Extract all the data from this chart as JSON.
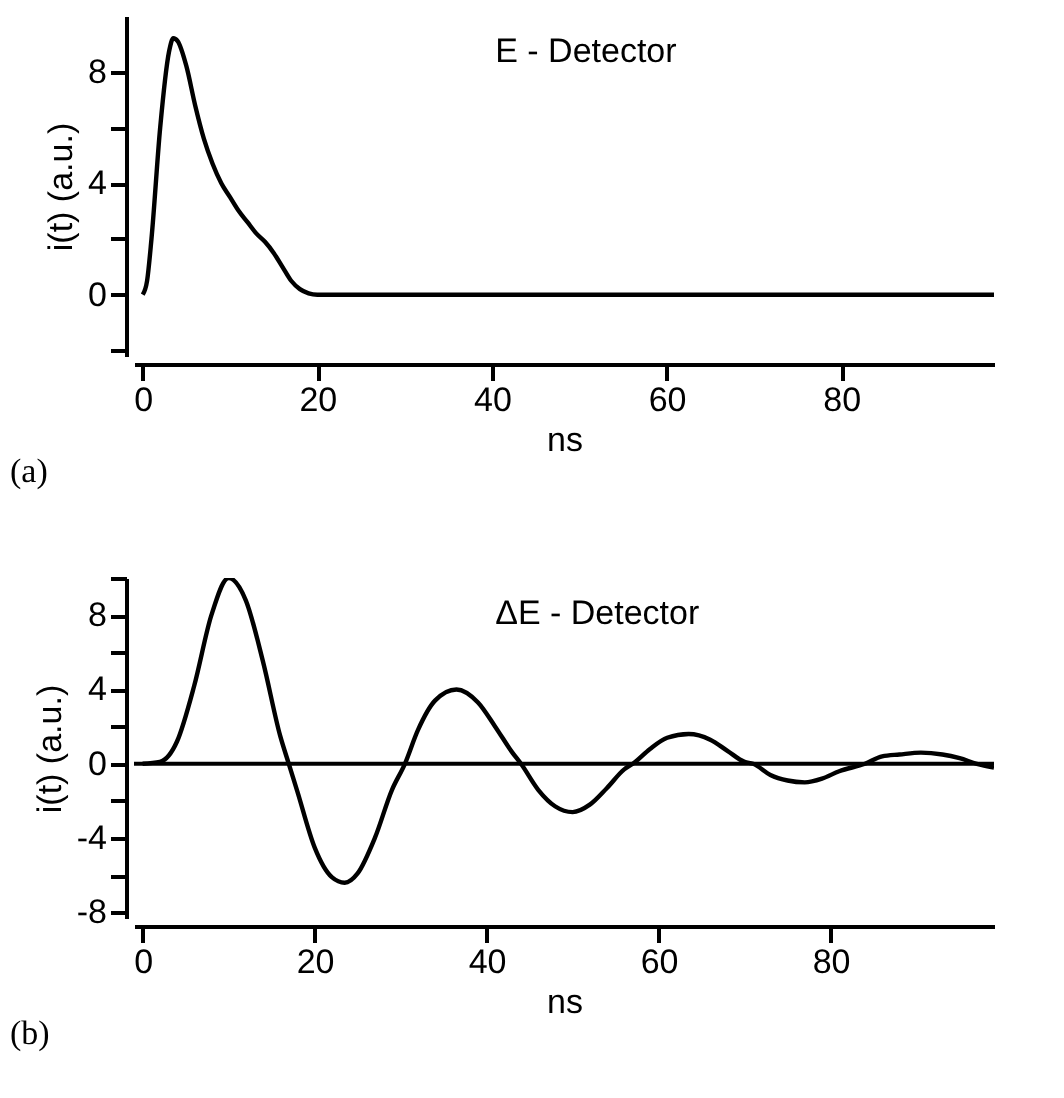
{
  "chart_data": [
    {
      "type": "line",
      "xlabel": "ns",
      "ylabel": "i(t) (a.u.)",
      "annotations": [
        "E - Detector",
        "(a)"
      ],
      "xlim": [
        -1,
        97.5
      ],
      "ylim": [
        -2.2,
        10
      ],
      "xticks": [
        0,
        20,
        40,
        60,
        80
      ],
      "yticks": [
        {
          "value": -2,
          "label": null
        },
        0,
        {
          "value": 2,
          "label": null
        },
        4,
        {
          "value": 6,
          "label": null
        },
        8
      ],
      "grid": false,
      "legend": false,
      "marker": "none",
      "line_style": "solid",
      "series": [
        {
          "color": "#000000",
          "x": [
            0,
            0.5,
            1,
            2,
            3,
            3.5,
            4,
            5,
            6,
            7,
            8,
            9,
            10,
            11,
            12,
            13,
            14,
            15,
            16,
            17,
            18,
            19,
            20,
            21,
            97.5
          ],
          "values": [
            0,
            0.5,
            2,
            6,
            8.7,
            9.2,
            9.1,
            8.2,
            6.8,
            5.6,
            4.7,
            4.0,
            3.5,
            3.0,
            2.6,
            2.2,
            1.9,
            1.5,
            1.0,
            0.5,
            0.2,
            0.05,
            0,
            0,
            0
          ]
        }
      ]
    },
    {
      "type": "line",
      "xlabel": "ns",
      "ylabel": "i(t) (a.u.)",
      "annotations": [
        "ΔE - Detector",
        "(b)"
      ],
      "xlim": [
        -1,
        99
      ],
      "ylim": [
        -8.3,
        10
      ],
      "xticks": [
        0,
        20,
        40,
        60,
        80
      ],
      "yticks": [
        -8,
        {
          "value": -6,
          "label": null
        },
        -4,
        {
          "value": -2,
          "label": null
        },
        0,
        {
          "value": 2,
          "label": null
        },
        4,
        {
          "value": 6,
          "label": null
        },
        8,
        {
          "value": 10,
          "label": null
        }
      ],
      "grid": false,
      "legend": false,
      "marker": "none",
      "line_style": "solid",
      "ref_lines": [
        {
          "axis": "y",
          "value": 0,
          "label": null,
          "color": "#000000"
        }
      ],
      "series": [
        {
          "color": "#000000",
          "x": [
            0,
            2,
            4,
            6,
            8,
            10,
            12,
            14,
            16,
            17,
            18,
            20,
            22,
            23.5,
            25,
            27,
            29,
            30.5,
            32,
            34,
            36.5,
            39,
            41,
            43,
            44,
            46,
            48,
            50,
            52,
            54,
            56,
            57,
            59,
            61,
            63.5,
            66,
            68,
            70,
            71,
            73,
            75,
            77,
            79,
            81,
            84,
            86,
            88,
            90.5,
            93,
            95,
            97,
            99
          ],
          "values": [
            0,
            0.1,
            1.2,
            4.2,
            8.0,
            10,
            8.8,
            5.5,
            1.5,
            0,
            -1.5,
            -4.5,
            -6.1,
            -6.4,
            -5.9,
            -4.0,
            -1.4,
            0,
            1.8,
            3.4,
            4.0,
            3.3,
            2.0,
            0.6,
            0,
            -1.4,
            -2.3,
            -2.6,
            -2.2,
            -1.3,
            -0.3,
            0,
            0.8,
            1.4,
            1.6,
            1.3,
            0.7,
            0.1,
            0,
            -0.6,
            -0.9,
            -1.0,
            -0.8,
            -0.4,
            0,
            0.4,
            0.5,
            0.6,
            0.5,
            0.3,
            0,
            -0.2
          ]
        }
      ]
    }
  ]
}
